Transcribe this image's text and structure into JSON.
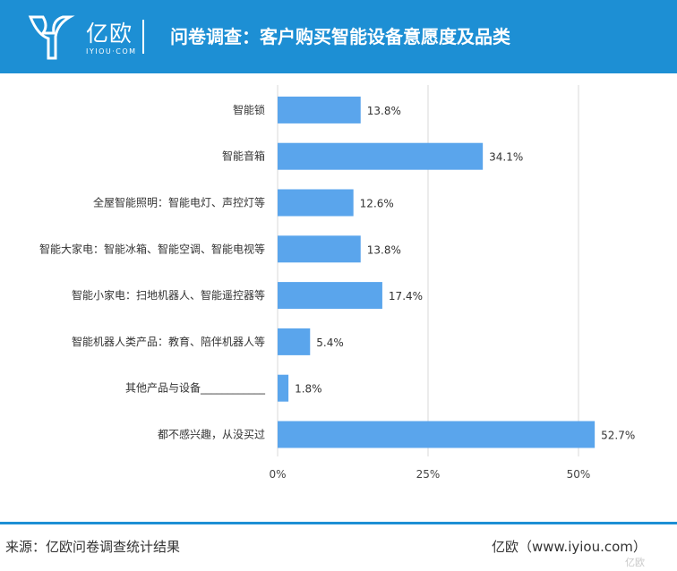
{
  "header": {
    "logo_text": "亿欧",
    "logo_sub": "IYIOU·COM",
    "title": "问卷调查：客户购买智能设备意愿度及品类",
    "background_color": "#1d8fd4"
  },
  "chart_data": {
    "type": "bar",
    "orientation": "horizontal",
    "categories": [
      "智能锁",
      "智能音箱",
      "全屋智能照明：智能电灯、声控灯等",
      "智能大家电：智能冰箱、智能空调、智能电视等",
      "智能小家电：扫地机器人、智能遥控器等",
      "智能机器人类产品：教育、陪伴机器人等",
      "其他产品与设备____________",
      "都不感兴趣，从没买过"
    ],
    "values": [
      13.8,
      34.1,
      12.6,
      13.8,
      17.4,
      5.4,
      1.8,
      52.7
    ],
    "value_labels": [
      "13.8%",
      "34.1%",
      "12.6%",
      "13.8%",
      "17.4%",
      "5.4%",
      "1.8%",
      "52.7%"
    ],
    "xlim": [
      0,
      55
    ],
    "x_ticks": [
      0,
      25,
      50
    ],
    "x_tick_labels": [
      "0%",
      "25%",
      "50%"
    ],
    "grid": true,
    "bar_color": "#5aa5ec",
    "grid_color": "#d9d9d9"
  },
  "footer": {
    "source": "来源：亿欧问卷调查统计结果",
    "site": "亿欧（www.iyiou.com）",
    "watermark": "亿欧",
    "line_color": "#1d8fd4"
  }
}
